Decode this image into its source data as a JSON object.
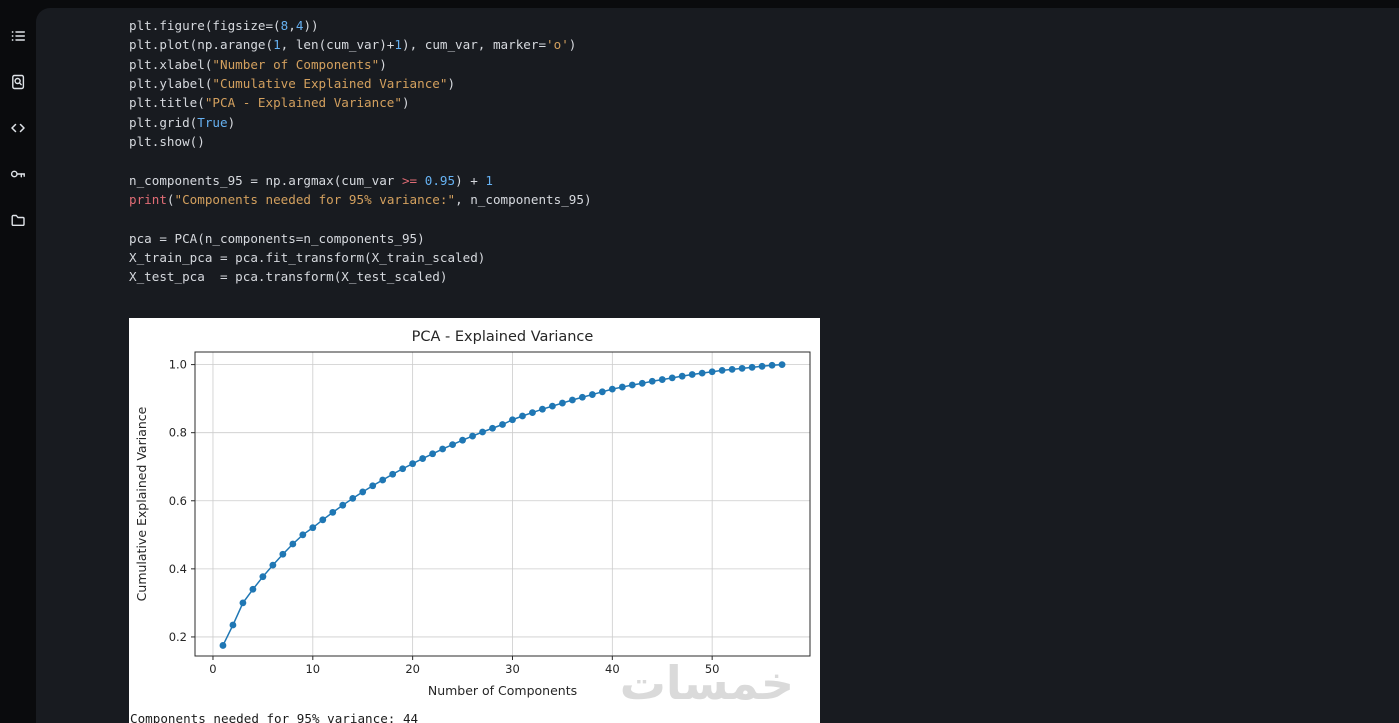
{
  "colors": {
    "chrome_background": "#0a0b0d",
    "editor_background": "#181b20",
    "syntax_plain": "#d6d9de",
    "syntax_keyword": "#e06c75",
    "syntax_string": "#d3a05e",
    "syntax_number": "#66b1f1",
    "plot_line": "#1f77b4"
  },
  "sidebar": {
    "items": [
      {
        "icon": "list-icon"
      },
      {
        "icon": "file-search-icon"
      },
      {
        "icon": "code-icon"
      },
      {
        "icon": "key-icon"
      },
      {
        "icon": "folder-icon"
      }
    ]
  },
  "editor": {
    "language": "python",
    "code_lines": [
      [
        [
          "pl",
          "plt.figure(figsize=("
        ],
        [
          "nu",
          "8"
        ],
        [
          "pl",
          ","
        ],
        [
          "nu",
          "4"
        ],
        [
          "pl",
          "))"
        ]
      ],
      [
        [
          "pl",
          "plt.plot(np.arange("
        ],
        [
          "nu",
          "1"
        ],
        [
          "pl",
          ", len(cum_var)+"
        ],
        [
          "nu",
          "1"
        ],
        [
          "pl",
          "), cum_var, marker="
        ],
        [
          "st",
          "'o'"
        ],
        [
          "pl",
          ")"
        ]
      ],
      [
        [
          "pl",
          "plt.xlabel("
        ],
        [
          "st",
          "\"Number of Components\""
        ],
        [
          "pl",
          ")"
        ]
      ],
      [
        [
          "pl",
          "plt.ylabel("
        ],
        [
          "st",
          "\"Cumulative Explained Variance\""
        ],
        [
          "pl",
          ")"
        ]
      ],
      [
        [
          "pl",
          "plt.title("
        ],
        [
          "st",
          "\"PCA - Explained Variance\""
        ],
        [
          "pl",
          ")"
        ]
      ],
      [
        [
          "pl",
          "plt.grid("
        ],
        [
          "nu",
          "True"
        ],
        [
          "pl",
          ")"
        ]
      ],
      [
        [
          "pl",
          "plt.show()"
        ]
      ],
      [],
      [
        [
          "pl",
          "n_components_95 = np.argmax(cum_var "
        ],
        [
          "kw",
          ">="
        ],
        [
          "pl",
          " "
        ],
        [
          "nu",
          "0.95"
        ],
        [
          "pl",
          ") + "
        ],
        [
          "nu",
          "1"
        ]
      ],
      [
        [
          "kw",
          "print"
        ],
        [
          "pl",
          "("
        ],
        [
          "st",
          "\"Components needed for 95% variance:\""
        ],
        [
          "pl",
          ", n_components_95)"
        ]
      ],
      [],
      [
        [
          "pl",
          "pca = PCA(n_components=n_components_95)"
        ]
      ],
      [
        [
          "pl",
          "X_train_pca = pca.fit_transform(X_train_scaled)"
        ]
      ],
      [
        [
          "pl",
          "X_test_pca  = pca.transform(X_test_scaled)"
        ]
      ]
    ]
  },
  "output": {
    "stdout_line": "Components needed for 95% variance: 44",
    "watermark_text": "خمسات"
  },
  "chart_data": {
    "type": "line",
    "title": "PCA - Explained Variance",
    "xlabel": "Number of Components",
    "ylabel": "Cumulative Explained Variance",
    "marker": "o",
    "line_color": "#1f77b4",
    "grid": true,
    "legend": "none",
    "xlim": [
      -1.8,
      59.8
    ],
    "ylim": [
      0.144,
      1.037
    ],
    "xticks": [
      0,
      10,
      20,
      30,
      40,
      50
    ],
    "yticks": [
      0.2,
      0.4,
      0.6,
      0.8,
      1.0
    ],
    "x": [
      1,
      2,
      3,
      4,
      5,
      6,
      7,
      8,
      9,
      10,
      11,
      12,
      13,
      14,
      15,
      16,
      17,
      18,
      19,
      20,
      21,
      22,
      23,
      24,
      25,
      26,
      27,
      28,
      29,
      30,
      31,
      32,
      33,
      34,
      35,
      36,
      37,
      38,
      39,
      40,
      41,
      42,
      43,
      44,
      45,
      46,
      47,
      48,
      49,
      50,
      51,
      52,
      53,
      54,
      55,
      56,
      57
    ],
    "y": [
      0.175,
      0.235,
      0.3,
      0.34,
      0.377,
      0.411,
      0.443,
      0.473,
      0.5,
      0.521,
      0.544,
      0.566,
      0.587,
      0.607,
      0.626,
      0.644,
      0.661,
      0.678,
      0.694,
      0.709,
      0.724,
      0.738,
      0.752,
      0.765,
      0.778,
      0.79,
      0.802,
      0.813,
      0.824,
      0.838,
      0.849,
      0.859,
      0.869,
      0.878,
      0.887,
      0.896,
      0.904,
      0.912,
      0.92,
      0.928,
      0.934,
      0.94,
      0.945,
      0.951,
      0.956,
      0.961,
      0.966,
      0.971,
      0.975,
      0.979,
      0.983,
      0.986,
      0.989,
      0.992,
      0.995,
      0.998,
      1.0
    ]
  }
}
